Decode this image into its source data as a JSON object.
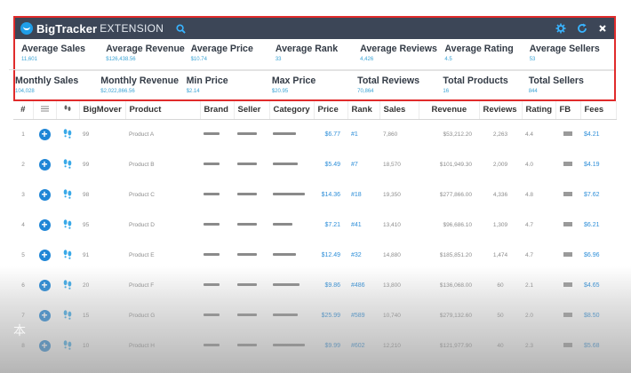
{
  "extension": {
    "brand": "BigTracker",
    "brand_sub": "EXTENSION",
    "stats_row1": [
      {
        "label": "Average Sales",
        "value": "11,601"
      },
      {
        "label": "Average Revenue",
        "value": "$126,438.56"
      },
      {
        "label": "Average Price",
        "value": "$10.74"
      },
      {
        "label": "Average Rank",
        "value": "33"
      },
      {
        "label": "Average Reviews",
        "value": "4,426"
      },
      {
        "label": "Average Rating",
        "value": "4.5"
      },
      {
        "label": "Average Sellers",
        "value": "53"
      }
    ],
    "stats_row2": [
      {
        "label": "Monthly Sales",
        "value": "104,028"
      },
      {
        "label": "Monthly Revenue",
        "value": "$2,022,866.56"
      },
      {
        "label": "Min Price",
        "value": "$2.14"
      },
      {
        "label": "Max Price",
        "value": "$20.95"
      },
      {
        "label": "Total Reviews",
        "value": "70,864"
      },
      {
        "label": "Total Products",
        "value": "16"
      },
      {
        "label": "Total Sellers",
        "value": "844"
      }
    ],
    "colors": {
      "bar_bg": "#3c4657",
      "accent": "#1f9ee8",
      "border": "#e02b2b",
      "value_text": "#3aa3d4"
    }
  },
  "table": {
    "headers": {
      "index": "#",
      "c2": "",
      "c3": "",
      "bigmover": "BigMover",
      "product": "Product",
      "brand": "Brand",
      "seller": "Seller",
      "category": "Category",
      "price": "Price",
      "rank": "Rank",
      "sales": "Sales",
      "revenue": "Revenue",
      "reviews": "Reviews",
      "rating": "Rating",
      "fb": "FB",
      "fees": "Fees"
    },
    "rows": [
      {
        "index": "1",
        "bigmover": "99",
        "product": "Product A",
        "price": "$6.77",
        "rank": "#1",
        "sales": "7,860",
        "revenue": "$53,212.20",
        "reviews": "2,263",
        "rating": "4.4",
        "fees": "$4.21"
      },
      {
        "index": "2",
        "bigmover": "99",
        "product": "Product B",
        "price": "$5.49",
        "rank": "#7",
        "sales": "18,570",
        "revenue": "$101,949.30",
        "reviews": "2,009",
        "rating": "4.0",
        "fees": "$4.19"
      },
      {
        "index": "3",
        "bigmover": "98",
        "product": "Product C",
        "price": "$14.36",
        "rank": "#18",
        "sales": "19,350",
        "revenue": "$277,866.00",
        "reviews": "4,336",
        "rating": "4.8",
        "fees": "$7.62"
      },
      {
        "index": "4",
        "bigmover": "95",
        "product": "Product D",
        "price": "$7.21",
        "rank": "#41",
        "sales": "13,410",
        "revenue": "$96,686.10",
        "reviews": "1,309",
        "rating": "4.7",
        "fees": "$6.21"
      },
      {
        "index": "5",
        "bigmover": "91",
        "product": "Product E",
        "price": "$12.49",
        "rank": "#32",
        "sales": "14,880",
        "revenue": "$185,851.20",
        "reviews": "1,474",
        "rating": "4.7",
        "fees": "$6.96"
      },
      {
        "index": "6",
        "bigmover": "20",
        "product": "Product F",
        "price": "$9.86",
        "rank": "#486",
        "sales": "13,800",
        "revenue": "$136,068.00",
        "reviews": "60",
        "rating": "2.1",
        "fees": "$4.65"
      },
      {
        "index": "7",
        "bigmover": "15",
        "product": "Product G",
        "price": "$25.99",
        "rank": "#589",
        "sales": "10,740",
        "revenue": "$279,132.60",
        "reviews": "50",
        "rating": "2.0",
        "fees": "$8.50"
      },
      {
        "index": "8",
        "bigmover": "10",
        "product": "Product H",
        "price": "$9.99",
        "rank": "#602",
        "sales": "12,210",
        "revenue": "$121,977.90",
        "reviews": "40",
        "rating": "2.3",
        "fees": "$5.68"
      }
    ]
  },
  "watermark": "本"
}
